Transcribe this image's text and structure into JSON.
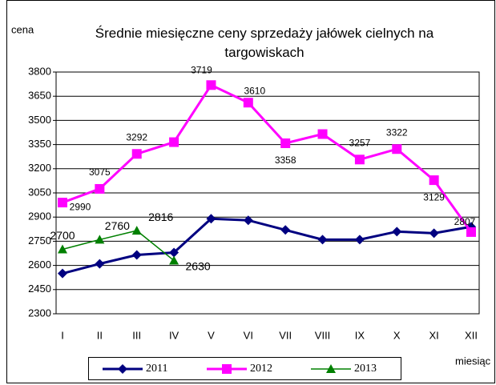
{
  "chart_data": {
    "type": "line",
    "title": "Średnie miesięczne ceny sprzedaży jałówek cielnych na targowiskach",
    "y_label": "cena",
    "x_label": "miesiąc",
    "categories": [
      "I",
      "II",
      "III",
      "IV",
      "V",
      "VI",
      "VII",
      "VIII",
      "IX",
      "X",
      "XI",
      "XII"
    ],
    "ylim": [
      2300,
      3800
    ],
    "yticks": [
      2300,
      2450,
      2600,
      2750,
      2900,
      3050,
      3200,
      3350,
      3500,
      3650,
      3800
    ],
    "grid": true,
    "legend": "bottom",
    "series": [
      {
        "name": "2011",
        "color": "#000080",
        "marker": "diamond",
        "values": [
          2550,
          2610,
          2665,
          2680,
          2890,
          2880,
          2820,
          2760,
          2760,
          2810,
          2800,
          2840
        ]
      },
      {
        "name": "2012",
        "color": "#ff00ff",
        "marker": "square",
        "values": [
          2990,
          3075,
          3292,
          3365,
          3719,
          3610,
          3358,
          3415,
          3257,
          3322,
          3129,
          2807
        ],
        "value_labels": [
          "2990",
          "3075",
          "3292",
          null,
          "3719",
          "3610",
          "3358",
          null,
          "3257",
          "3322",
          "3129",
          "2807"
        ]
      },
      {
        "name": "2013",
        "color": "#008000",
        "marker": "triangle",
        "values": [
          2700,
          2760,
          2816,
          2630,
          null,
          null,
          null,
          null,
          null,
          null,
          null,
          null
        ],
        "value_labels": [
          "2700",
          "2760",
          "2816",
          "2630",
          null,
          null,
          null,
          null,
          null,
          null,
          null,
          null
        ]
      }
    ]
  }
}
